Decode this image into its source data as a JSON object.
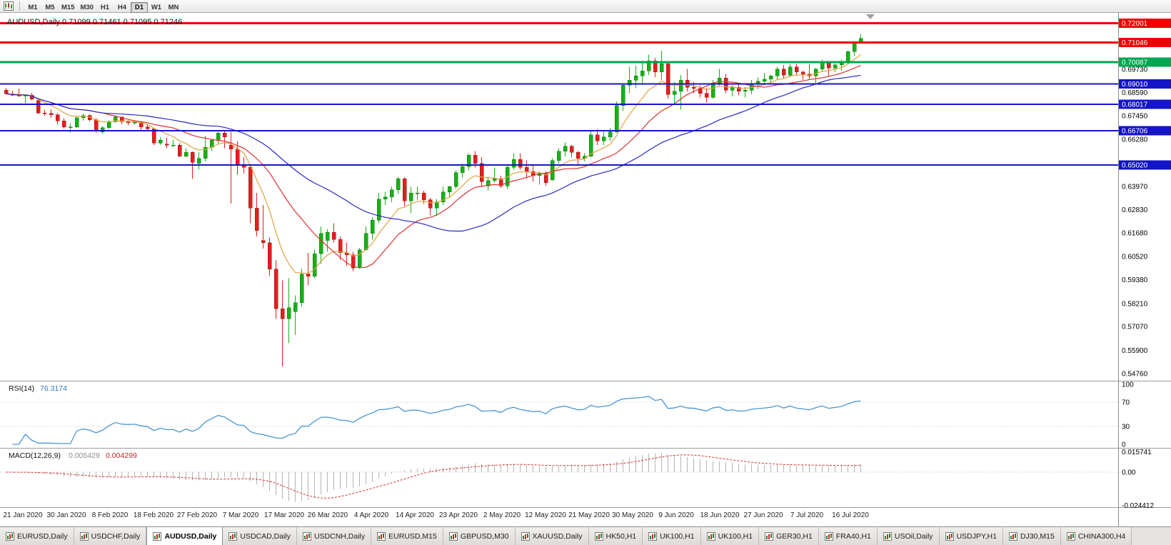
{
  "toolbar": {
    "timeframes": [
      "M1",
      "M5",
      "M15",
      "M30",
      "H1",
      "H4",
      "D1",
      "W1",
      "MN"
    ],
    "active_timeframe": "D1",
    "left_icon": "chart-icon"
  },
  "chart_data": {
    "type": "candlestick",
    "symbol": "AUDUSD",
    "timeframe": "Daily",
    "readout": "AUDUSD,Daily 0.71099 0.71461 0.71095 0.71246",
    "current_bar": {
      "open": 0.71099,
      "high": 0.71461,
      "low": 0.71095,
      "close": 0.71246
    },
    "ylim": [
      0.5444,
      0.7251
    ],
    "bull_color": "#18b018",
    "bear_color": "#e02020",
    "y_axis_labels": [
      "0.69730",
      "0.68590",
      "0.67450",
      "0.66280",
      "0.63970",
      "0.62830",
      "0.61680",
      "0.60520",
      "0.59380",
      "0.58210",
      "0.57070",
      "0.55900",
      "0.54760"
    ],
    "x_labels": [
      "21 Jan 2020",
      "30 Jan 2020",
      "8 Feb 2020",
      "18 Feb 2020",
      "27 Feb 2020",
      "7 Mar 2020",
      "17 Mar 2020",
      "26 Mar 2020",
      "4 Apr 2020",
      "14 Apr 2020",
      "23 Apr 2020",
      "2 May 2020",
      "12 May 2020",
      "21 May 2020",
      "30 May 2020",
      "9 Jun 2020",
      "18 Jun 2020",
      "27 Jun 2020",
      "7 Jul 2020",
      "16 Jul 2020"
    ],
    "candles": [
      [
        0.687,
        0.6882,
        0.6848,
        0.6853
      ],
      [
        0.6853,
        0.6868,
        0.6841,
        0.6845
      ],
      [
        0.6845,
        0.6879,
        0.6838,
        0.6843
      ],
      [
        0.6843,
        0.685,
        0.6807,
        0.6845
      ],
      [
        0.6845,
        0.6858,
        0.6821,
        0.6827
      ],
      [
        0.682,
        0.6828,
        0.6753,
        0.6758
      ],
      [
        0.6758,
        0.6774,
        0.6744,
        0.6757
      ],
      [
        0.6757,
        0.6776,
        0.6735,
        0.675
      ],
      [
        0.675,
        0.6757,
        0.67,
        0.672
      ],
      [
        0.672,
        0.6733,
        0.6682,
        0.669
      ],
      [
        0.6685,
        0.6707,
        0.6662,
        0.669
      ],
      [
        0.669,
        0.6738,
        0.6684,
        0.6735
      ],
      [
        0.6735,
        0.6755,
        0.672,
        0.6745
      ],
      [
        0.6745,
        0.6751,
        0.6717,
        0.6725
      ],
      [
        0.6725,
        0.6733,
        0.6662,
        0.667
      ],
      [
        0.6665,
        0.6692,
        0.6657,
        0.6685
      ],
      [
        0.6685,
        0.6723,
        0.668,
        0.6715
      ],
      [
        0.6715,
        0.6748,
        0.671,
        0.6738
      ],
      [
        0.6738,
        0.6742,
        0.6703,
        0.6715
      ],
      [
        0.6715,
        0.6723,
        0.6697,
        0.671
      ],
      [
        0.671,
        0.6722,
        0.67,
        0.6712
      ],
      [
        0.6712,
        0.6715,
        0.6667,
        0.669
      ],
      [
        0.669,
        0.67,
        0.6672,
        0.668
      ],
      [
        0.668,
        0.6685,
        0.66,
        0.661
      ],
      [
        0.661,
        0.664,
        0.6603,
        0.6625
      ],
      [
        0.6605,
        0.6635,
        0.6585,
        0.66
      ],
      [
        0.66,
        0.6627,
        0.6592,
        0.66
      ],
      [
        0.66,
        0.661,
        0.6542,
        0.6545
      ],
      [
        0.6545,
        0.6585,
        0.654,
        0.6565
      ],
      [
        0.6565,
        0.6569,
        0.6434,
        0.6515
      ],
      [
        0.651,
        0.6565,
        0.648,
        0.6535
      ],
      [
        0.6535,
        0.6646,
        0.652,
        0.659
      ],
      [
        0.659,
        0.663,
        0.657,
        0.6625
      ],
      [
        0.6625,
        0.6665,
        0.6605,
        0.666
      ],
      [
        0.666,
        0.667,
        0.6585,
        0.664
      ],
      [
        0.66,
        0.6665,
        0.6313,
        0.658
      ],
      [
        0.658,
        0.6618,
        0.6455,
        0.65
      ],
      [
        0.65,
        0.654,
        0.646,
        0.649
      ],
      [
        0.649,
        0.65,
        0.6215,
        0.629
      ],
      [
        0.629,
        0.6365,
        0.615,
        0.618
      ],
      [
        0.613,
        0.6305,
        0.609,
        0.612
      ],
      [
        0.612,
        0.6145,
        0.5955,
        0.599
      ],
      [
        0.599,
        0.6035,
        0.5745,
        0.5795
      ],
      [
        0.5795,
        0.5935,
        0.551,
        0.5745
      ],
      [
        0.5745,
        0.5945,
        0.5625,
        0.58
      ],
      [
        0.578,
        0.586,
        0.5665,
        0.5825
      ],
      [
        0.5825,
        0.599,
        0.5805,
        0.5965
      ],
      [
        0.5965,
        0.607,
        0.591,
        0.5955
      ],
      [
        0.5955,
        0.6085,
        0.5945,
        0.6065
      ],
      [
        0.6065,
        0.62,
        0.6015,
        0.6165
      ],
      [
        0.613,
        0.6185,
        0.6075,
        0.617
      ],
      [
        0.617,
        0.6215,
        0.612,
        0.6135
      ],
      [
        0.6135,
        0.615,
        0.6035,
        0.607
      ],
      [
        0.607,
        0.612,
        0.6005,
        0.606
      ],
      [
        0.606,
        0.6075,
        0.598,
        0.5995
      ],
      [
        0.6,
        0.6095,
        0.599,
        0.6085
      ],
      [
        0.6085,
        0.62,
        0.608,
        0.6165
      ],
      [
        0.6165,
        0.6245,
        0.6135,
        0.623
      ],
      [
        0.623,
        0.6365,
        0.6215,
        0.6335
      ],
      [
        0.6335,
        0.637,
        0.6305,
        0.6345
      ],
      [
        0.6345,
        0.6395,
        0.632,
        0.638
      ],
      [
        0.638,
        0.6445,
        0.636,
        0.6435
      ],
      [
        0.6435,
        0.644,
        0.63,
        0.6325
      ],
      [
        0.6325,
        0.6395,
        0.6265,
        0.6365
      ],
      [
        0.6365,
        0.6395,
        0.633,
        0.6365
      ],
      [
        0.6365,
        0.6375,
        0.631,
        0.633
      ],
      [
        0.633,
        0.634,
        0.6255,
        0.629
      ],
      [
        0.629,
        0.6335,
        0.625,
        0.632
      ],
      [
        0.632,
        0.6395,
        0.6305,
        0.637
      ],
      [
        0.637,
        0.64,
        0.634,
        0.6395
      ],
      [
        0.6395,
        0.6475,
        0.6385,
        0.6465
      ],
      [
        0.6465,
        0.651,
        0.644,
        0.6495
      ],
      [
        0.6495,
        0.656,
        0.6475,
        0.655
      ],
      [
        0.655,
        0.657,
        0.649,
        0.651
      ],
      [
        0.651,
        0.654,
        0.64,
        0.642
      ],
      [
        0.64,
        0.6445,
        0.6375,
        0.6425
      ],
      [
        0.6425,
        0.649,
        0.6415,
        0.6435
      ],
      [
        0.6435,
        0.645,
        0.639,
        0.64
      ],
      [
        0.64,
        0.6505,
        0.6385,
        0.649
      ],
      [
        0.649,
        0.656,
        0.648,
        0.653
      ],
      [
        0.653,
        0.656,
        0.648,
        0.649
      ],
      [
        0.649,
        0.6525,
        0.6435,
        0.647
      ],
      [
        0.647,
        0.65,
        0.642,
        0.645
      ],
      [
        0.645,
        0.647,
        0.6405,
        0.646
      ],
      [
        0.646,
        0.647,
        0.64,
        0.6415
      ],
      [
        0.643,
        0.6535,
        0.6425,
        0.6525
      ],
      [
        0.6525,
        0.6585,
        0.651,
        0.657
      ],
      [
        0.657,
        0.6615,
        0.6545,
        0.6595
      ],
      [
        0.6595,
        0.66,
        0.654,
        0.6565
      ],
      [
        0.6565,
        0.657,
        0.6505,
        0.6535
      ],
      [
        0.6535,
        0.656,
        0.652,
        0.6545
      ],
      [
        0.6545,
        0.6675,
        0.654,
        0.665
      ],
      [
        0.665,
        0.668,
        0.66,
        0.662
      ],
      [
        0.662,
        0.6665,
        0.66,
        0.664
      ],
      [
        0.664,
        0.6685,
        0.662,
        0.6665
      ],
      [
        0.6665,
        0.6815,
        0.666,
        0.6795
      ],
      [
        0.6795,
        0.69,
        0.677,
        0.6895
      ],
      [
        0.6895,
        0.6985,
        0.6855,
        0.692
      ],
      [
        0.692,
        0.699,
        0.688,
        0.694
      ],
      [
        0.694,
        0.7015,
        0.6905,
        0.6965
      ],
      [
        0.6965,
        0.7045,
        0.6945,
        0.7015
      ],
      [
        0.7015,
        0.703,
        0.6935,
        0.696
      ],
      [
        0.696,
        0.7065,
        0.692,
        0.7
      ],
      [
        0.7,
        0.701,
        0.683,
        0.685
      ],
      [
        0.685,
        0.691,
        0.68,
        0.6865
      ],
      [
        0.6865,
        0.6945,
        0.6775,
        0.692
      ],
      [
        0.692,
        0.6975,
        0.6865,
        0.6885
      ],
      [
        0.6885,
        0.691,
        0.6855,
        0.688
      ],
      [
        0.688,
        0.6895,
        0.6835,
        0.6855
      ],
      [
        0.6855,
        0.688,
        0.681,
        0.6835
      ],
      [
        0.6835,
        0.692,
        0.683,
        0.6905
      ],
      [
        0.6905,
        0.6975,
        0.6895,
        0.693
      ],
      [
        0.693,
        0.695,
        0.6855,
        0.687
      ],
      [
        0.687,
        0.6895,
        0.684,
        0.6885
      ],
      [
        0.6885,
        0.69,
        0.6845,
        0.6865
      ],
      [
        0.6865,
        0.6885,
        0.6835,
        0.687
      ],
      [
        0.687,
        0.692,
        0.685,
        0.69
      ],
      [
        0.69,
        0.6935,
        0.6875,
        0.6915
      ],
      [
        0.6915,
        0.6955,
        0.69,
        0.6925
      ],
      [
        0.6925,
        0.6945,
        0.691,
        0.694
      ],
      [
        0.694,
        0.6985,
        0.692,
        0.6975
      ],
      [
        0.6975,
        0.6995,
        0.6925,
        0.6945
      ],
      [
        0.6945,
        0.7,
        0.6935,
        0.6985
      ],
      [
        0.6985,
        0.7,
        0.6945,
        0.696
      ],
      [
        0.696,
        0.6965,
        0.692,
        0.695
      ],
      [
        0.695,
        0.7,
        0.692,
        0.694
      ],
      [
        0.694,
        0.698,
        0.6905,
        0.6975
      ],
      [
        0.6975,
        0.702,
        0.6965,
        0.7005
      ],
      [
        0.7005,
        0.701,
        0.694,
        0.698
      ],
      [
        0.698,
        0.7,
        0.696,
        0.6995
      ],
      [
        0.6995,
        0.702,
        0.6965,
        0.701
      ],
      [
        0.701,
        0.7065,
        0.7,
        0.706
      ],
      [
        0.706,
        0.711,
        0.704,
        0.7105
      ],
      [
        0.71099,
        0.71461,
        0.71095,
        0.71246
      ]
    ],
    "moving_averages": [
      {
        "name": "ma-fast",
        "type": "ema",
        "period": 8,
        "color": "#e0a33c"
      },
      {
        "name": "ma-mid",
        "type": "sma",
        "period": 16,
        "color": "#e03030"
      },
      {
        "name": "ma-slow",
        "type": "sma",
        "period": 34,
        "color": "#2828c8"
      }
    ],
    "price_levels": [
      {
        "label": "0.72001",
        "price": 0.72001,
        "color": "#f00000",
        "width": 3
      },
      {
        "label": "0.71046",
        "price": 0.71046,
        "color": "#f00000",
        "width": 3
      },
      {
        "label": "0.70087",
        "price": 0.70087,
        "color": "#00a651",
        "width": 3
      },
      {
        "label": "0.69010",
        "price": 0.6901,
        "color": "#1414c8",
        "width": 2
      },
      {
        "label": "0.68017",
        "price": 0.68017,
        "color": "#1414c8",
        "width": 2
      },
      {
        "label": "0.66706",
        "price": 0.66706,
        "color": "#1414c8",
        "width": 2
      },
      {
        "label": "0.65020",
        "price": 0.6502,
        "color": "#1414c8",
        "width": 2
      }
    ],
    "rsi": {
      "label": "RSI(14)",
      "value": "76.3174",
      "period": 14,
      "color": "#4a96d2",
      "ylim": [
        0,
        100
      ],
      "levels": [
        100,
        70,
        30,
        0
      ],
      "axis_labels": [
        "100",
        "70",
        "30",
        "0"
      ]
    },
    "macd": {
      "label": "MACD(12,26,9)",
      "value_main": "0.005429",
      "value_signal": "0.004299",
      "fast": 12,
      "slow": 26,
      "signal": 9,
      "hist_color": "#b4b4b4",
      "signal_color": "#d03030",
      "ylim": [
        -0.024412,
        0.015741
      ],
      "axis_labels": [
        "0.015741",
        "0.00",
        "-0.024412"
      ]
    }
  },
  "tabs": {
    "items": [
      "EURUSD,Daily",
      "USDCHF,Daily",
      "AUDUSD,Daily",
      "USDCAD,Daily",
      "USDCNH,Daily",
      "EURUSD,M15",
      "GBPUSD,M30",
      "XAUUSD,Daily",
      "HK50,H1",
      "UK100,H1",
      "UK100,H1",
      "GER30,H1",
      "FRA40,H1",
      "USOil,Daily",
      "USDJPY,H1",
      "DJ30,M15",
      "CHINA300,H4"
    ],
    "active_index": 2
  }
}
